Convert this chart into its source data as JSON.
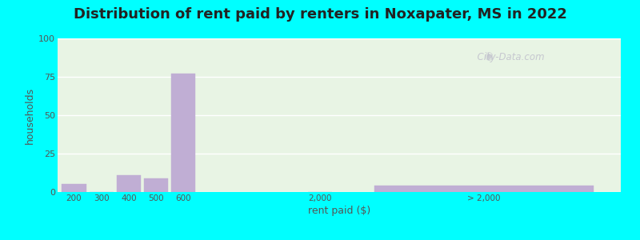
{
  "title": "Distribution of rent paid by renters in Noxapater, MS in 2022",
  "xlabel": "rent paid ($)",
  "ylabel": "households",
  "ylim": [
    0,
    100
  ],
  "yticks": [
    0,
    25,
    50,
    75,
    100
  ],
  "bar_heights": [
    5,
    0,
    11,
    9,
    77,
    0,
    4
  ],
  "bar_color": "#c0aed4",
  "bar_edgecolor": "#c0aed4",
  "bg_color_outer": "#00ffff",
  "bg_color_inner": "#e8f4e4",
  "grid_color": "#ffffff",
  "title_fontsize": 13,
  "axis_label_fontsize": 9,
  "tick_label_color": "#555555",
  "watermark_text": "City-Data.com",
  "xtick_labels": [
    "200",
    "300",
    "400",
    "500",
    "600",
    "2,000",
    "> 2,000"
  ]
}
